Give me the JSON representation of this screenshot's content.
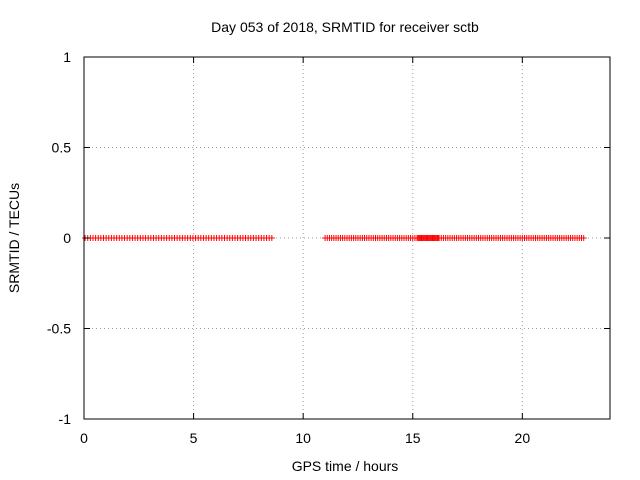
{
  "chart_data": {
    "type": "scatter",
    "title": "Day 053 of 2018, SRMTID for receiver sctb",
    "xlabel": "GPS time / hours",
    "ylabel": "SRMTID / TECUs",
    "xlim": [
      0,
      24
    ],
    "ylim": [
      -1,
      1
    ],
    "x_ticks": [
      0,
      5,
      10,
      15,
      20
    ],
    "x_tick_labels": [
      "0",
      "5",
      "10",
      "15",
      "20"
    ],
    "y_ticks": [
      1,
      0.5,
      0,
      -0.5,
      -1
    ],
    "y_tick_labels": [
      "1",
      "0.5",
      "0",
      "-0.5",
      "-1"
    ],
    "grid": true,
    "marker": "plus",
    "color": "#ff0000",
    "series": [
      {
        "name": "SRMTID",
        "segments": [
          {
            "x_start": 0.05,
            "x_end": 8.6,
            "step": 0.12,
            "y": 0
          },
          {
            "x_start": 11.0,
            "x_end": 22.8,
            "step": 0.1,
            "y": 0
          }
        ],
        "dense_ranges": [
          {
            "x_start": 15.2,
            "x_end": 16.2,
            "step": 0.05,
            "y": 0
          }
        ]
      }
    ]
  }
}
